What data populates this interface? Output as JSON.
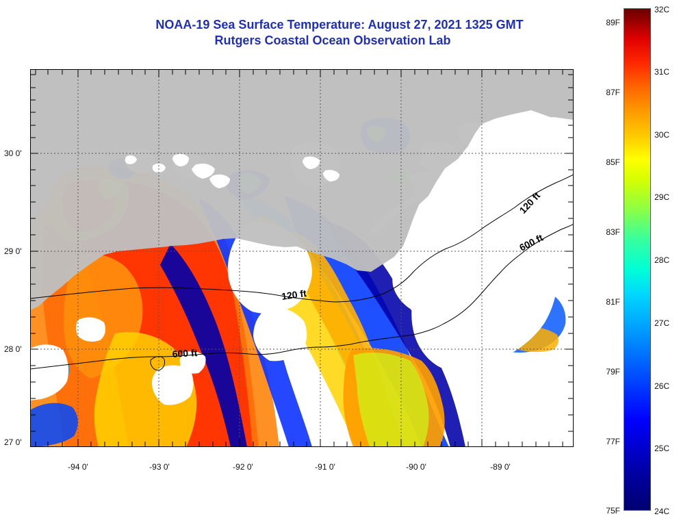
{
  "title": {
    "line1": "NOAA-19 Sea Surface Temperature:  August 27, 2021 1325 GMT",
    "line2": "Rutgers Coastal Ocean Observation Lab"
  },
  "map": {
    "x_axis_labels": [
      "-94 0'",
      "-93 0'",
      "-92 0'",
      "-91 0'",
      "-90 0'",
      "-89 0'"
    ],
    "y_axis_labels": [
      "30 0'",
      "29 0'",
      "28 0'",
      "27 0'"
    ],
    "contours": {
      "shelf": "120 ft",
      "deep": "600 ft"
    },
    "colors": {
      "land": "#c0c0c0",
      "cloud": "#ffffff",
      "contour": "#000000",
      "grid": "#555555"
    }
  },
  "colorbar": {
    "fahrenheit_labels": [
      "89F",
      "87F",
      "85F",
      "83F",
      "81F",
      "79F",
      "77F",
      "75F"
    ],
    "celsius_labels": [
      "32C",
      "31C",
      "30C",
      "29C",
      "28C",
      "27C",
      "26C",
      "25C",
      "24C"
    ]
  }
}
